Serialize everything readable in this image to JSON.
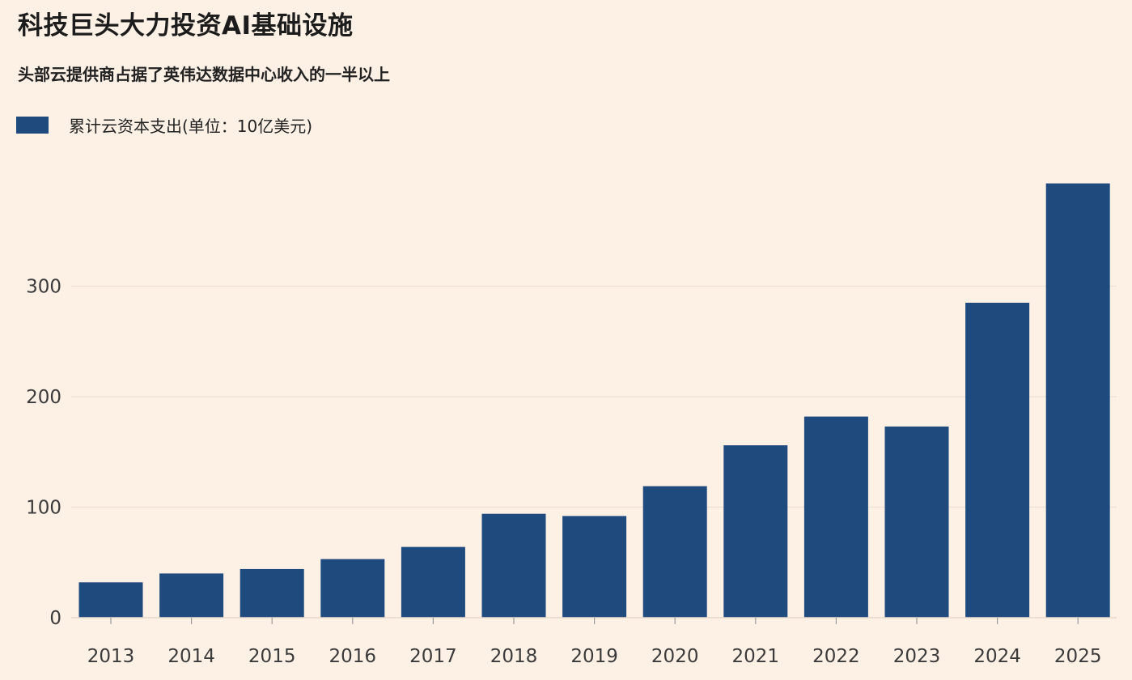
{
  "chart_data": {
    "type": "bar",
    "title": "科技巨头大力投资AI基础设施",
    "subtitle": "头部云提供商占据了英伟达数据中心收入的一半以上",
    "series": [
      {
        "name": "累计云资本支出(单位：10亿美元)",
        "color": "#1f4a7e",
        "values": [
          32,
          40,
          44,
          53,
          64,
          94,
          92,
          119,
          156,
          182,
          173,
          285,
          393
        ]
      }
    ],
    "categories": [
      "2013",
      "2014",
      "2015",
      "2016",
      "2017",
      "2018",
      "2019",
      "2020",
      "2021",
      "2022",
      "2023",
      "2024",
      "2025"
    ],
    "yticks": [
      "0",
      "100",
      "200",
      "300"
    ],
    "ytick_values": [
      0,
      100,
      200,
      300
    ],
    "ylim": [
      0,
      400
    ],
    "xlabel": "",
    "ylabel": "",
    "grid": true,
    "legend_position": "top-left"
  }
}
